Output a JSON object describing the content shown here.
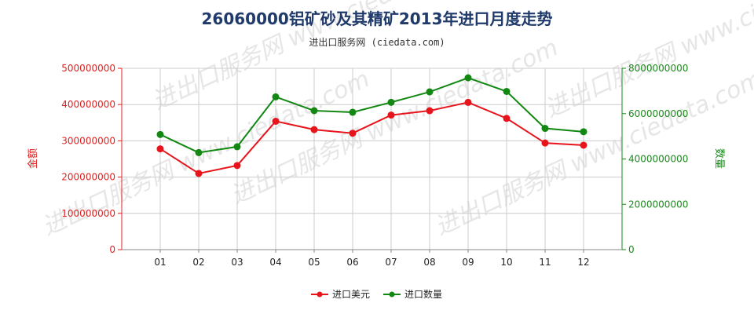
{
  "chart_data": {
    "type": "line",
    "title": "26060000铝矿砂及其精矿2013年进口月度走势",
    "subtitle": "进出口服务网 (ciedata.com)",
    "watermark": "进出口服务网 www.ciedata.com",
    "categories": [
      "01",
      "02",
      "03",
      "04",
      "05",
      "06",
      "07",
      "08",
      "09",
      "10",
      "11",
      "12"
    ],
    "y_left": {
      "label": "金额",
      "range": [
        0,
        500000000
      ],
      "ticks": [
        "0",
        "100000000",
        "200000000",
        "300000000",
        "400000000",
        "500000000"
      ],
      "tick_values": [
        0,
        100000000,
        200000000,
        300000000,
        400000000,
        500000000
      ]
    },
    "y_right": {
      "label": "数量",
      "range": [
        0,
        8000000000
      ],
      "ticks": [
        "0",
        "2000000000",
        "4000000000",
        "6000000000",
        "8000000000"
      ],
      "tick_values": [
        0,
        2000000000,
        4000000000,
        6000000000,
        8000000000
      ]
    },
    "series": [
      {
        "name": "进口美元",
        "axis": "left",
        "color": "#e8141b",
        "values": [
          278000000,
          210000000,
          232000000,
          354000000,
          331000000,
          321000000,
          371000000,
          383000000,
          406000000,
          362000000,
          294000000,
          288000000
        ]
      },
      {
        "name": "进口数量",
        "axis": "right",
        "color": "#128812",
        "values": [
          5080000000,
          4280000000,
          4540000000,
          6740000000,
          6130000000,
          6060000000,
          6500000000,
          6960000000,
          7580000000,
          6980000000,
          5350000000,
          5200000000
        ]
      }
    ],
    "grid": true,
    "legend_position": "bottom-center"
  }
}
